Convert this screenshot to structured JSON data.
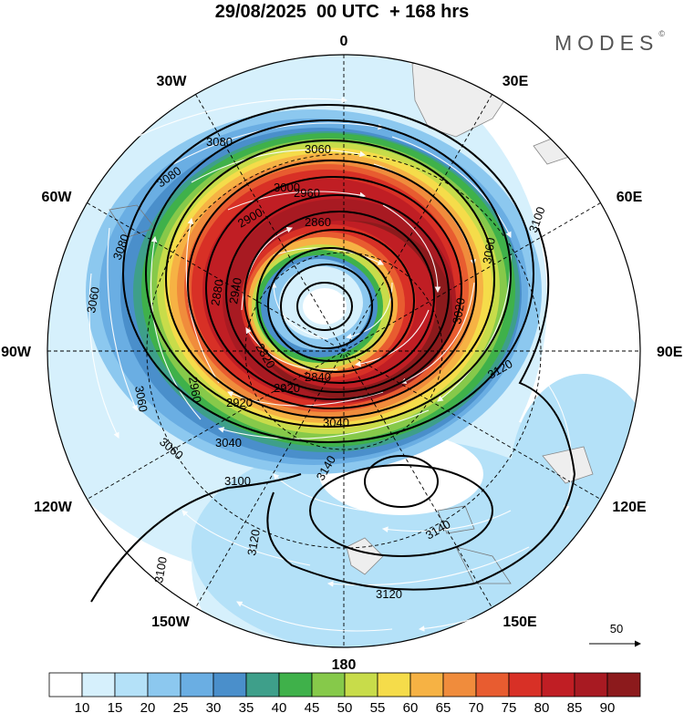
{
  "title": "29/08/2025  00 UTC  + 168 hrs",
  "brand": "MODES",
  "brand_mark": "©",
  "map": {
    "projection": "south-polar-stereographic",
    "longitude_labels": {
      "top": "0",
      "top_right": "30E",
      "upper_right": "60E",
      "right": "90E",
      "lower_right": "120E",
      "bottom_right": "150E",
      "bottom": "180",
      "bottom_left": "150W",
      "lower_left": "120W",
      "left": "90W",
      "upper_left": "60W",
      "top_left": "30W"
    },
    "contour_labels": {
      "c1": "3080",
      "c2": "3060",
      "c3": "3080",
      "c4": "3080",
      "c5": "3060",
      "c6": "3040",
      "c7": "2960",
      "c8": "2900",
      "c9": "2860",
      "c10": "2880",
      "c11": "2840",
      "c12": "2920",
      "c13": "2960",
      "c14": "3020",
      "c15": "3060",
      "c16": "3060",
      "c17": "3040",
      "c18": "3060",
      "c19": "3100",
      "c20": "3120",
      "c21": "3140",
      "c22": "3140",
      "c23": "3120",
      "c24": "3120",
      "c25": "3100",
      "c26": "3100",
      "c27": "3000",
      "c28": "2940",
      "c29": "2920",
      "c30": "2820"
    },
    "reference_vector": "50"
  },
  "colorbar": {
    "ticks": [
      "10",
      "15",
      "20",
      "25",
      "30",
      "35",
      "40",
      "45",
      "50",
      "55",
      "60",
      "65",
      "70",
      "75",
      "80",
      "85",
      "90"
    ],
    "colors": [
      "#ffffff",
      "#d6f0fc",
      "#b4e1f8",
      "#8cc8ef",
      "#6aaee3",
      "#4a8fcb",
      "#3e9f8a",
      "#3fb14a",
      "#86c94a",
      "#c8dc4a",
      "#f5dc4a",
      "#f6b244",
      "#f08c3c",
      "#e85c30",
      "#d83026",
      "#c01e24",
      "#a81a22",
      "#8c1a1c"
    ]
  }
}
